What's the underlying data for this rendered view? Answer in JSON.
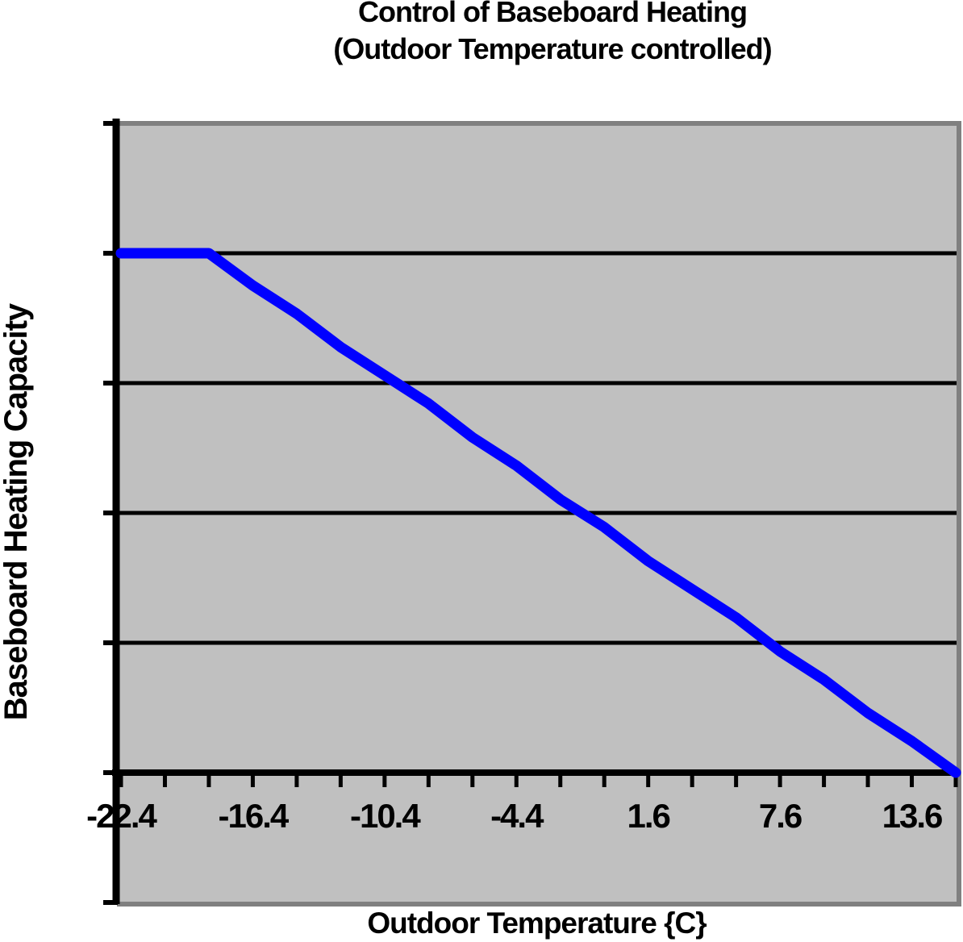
{
  "chart": {
    "title_line1": "Control of Baseboard Heating",
    "title_line2": "(Outdoor Temperature controlled)",
    "x_axis_title": "Outdoor Temperature {C}",
    "y_axis_title": "Baseboard Heating Capacity"
  },
  "colors": {
    "line": "#0000ff",
    "plot_fill": "#c0c0c0",
    "plot_border": "#808080",
    "axis": "#000000",
    "text": "#000000",
    "background": "#ffffff"
  },
  "chart_data": {
    "type": "line",
    "title": "Control of Baseboard Heating (Outdoor Temperature controlled)",
    "xlabel": "Outdoor Temperature {C}",
    "ylabel": "Baseboard Heating Capacity",
    "x": [
      -22.4,
      -20.4,
      -18.4,
      -16.4,
      -14.4,
      -12.4,
      -10.4,
      -8.4,
      -6.4,
      -4.4,
      -2.4,
      -0.4,
      1.6,
      3.6,
      5.6,
      7.6,
      9.6,
      11.6,
      13.6,
      15.6
    ],
    "x_tick_labels": [
      "-22.4",
      "-16.4",
      "-10.4",
      "-4.4",
      "1.6",
      "7.6",
      "13.6"
    ],
    "x_label_indices": [
      0,
      3,
      6,
      9,
      12,
      15,
      18
    ],
    "series": [
      {
        "name": "Baseboard Heating Capacity",
        "values": [
          1.0,
          1.0,
          1.0,
          0.941,
          0.882,
          0.824,
          0.765,
          0.706,
          0.647,
          0.588,
          0.529,
          0.471,
          0.412,
          0.353,
          0.294,
          0.235,
          0.176,
          0.118,
          0.059,
          0.0
        ]
      }
    ],
    "ylim": [
      -0.25,
      1.25
    ],
    "y_gridline_step": 0.25,
    "y_tick_labels_visible": false,
    "grid": "horizontal",
    "legend": "none"
  }
}
